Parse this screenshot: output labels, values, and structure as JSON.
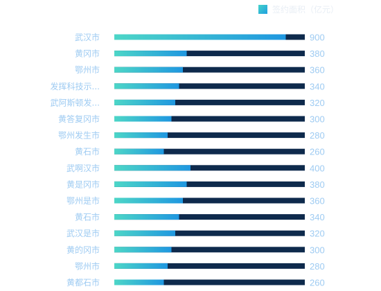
{
  "legend": {
    "label": "签约面积（亿元）"
  },
  "colors": {
    "track": "#0e2a4c",
    "bar_start": "#4dd6c7",
    "bar_end": "#1f97e0",
    "label": "#9ecbf2"
  },
  "chart_data": {
    "type": "bar",
    "orientation": "horizontal",
    "categories": [
      "武汉市",
      "黄冈市",
      "鄂州市",
      "发挥科技示...",
      "武阿斯顿发...",
      "黄答复冈市",
      "鄂州发生市",
      "黄石市",
      "武啊汉市",
      "黄是冈市",
      "鄂州是市",
      "黄石市",
      "武汉是市",
      "黄的冈市",
      "鄂州市",
      "黄都石市"
    ],
    "values": [
      900,
      380,
      360,
      340,
      320,
      300,
      280,
      260,
      400,
      380,
      360,
      340,
      320,
      300,
      280,
      260
    ],
    "series": [
      {
        "name": "签约面积（亿元）",
        "values": [
          900,
          380,
          360,
          340,
          320,
          300,
          280,
          260,
          400,
          380,
          360,
          340,
          320,
          300,
          280,
          260
        ]
      }
    ],
    "xlim": [
      0,
      1000
    ],
    "grid": false,
    "legend_position": "top-right"
  }
}
